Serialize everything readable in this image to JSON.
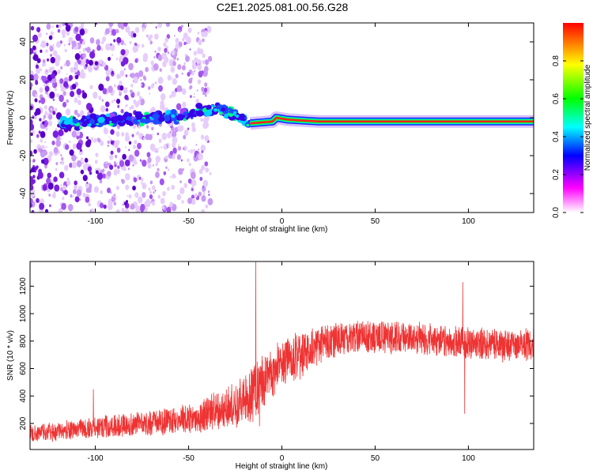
{
  "title": "C2E1.2025.081.00.56.G28",
  "chart_data": [
    {
      "type": "heatmap",
      "name": "spectrogram",
      "xlabel": "Height of straight line (km)",
      "ylabel": "Frequency (Hz)",
      "xlim": [
        -135,
        135
      ],
      "ylim": [
        -50,
        50
      ],
      "x_ticks": [
        -100,
        -50,
        0,
        50,
        100
      ],
      "y_ticks": [
        -40,
        -20,
        0,
        20,
        40
      ],
      "grid": false,
      "colorbar": {
        "label": "Normalized spectral amplitude",
        "range": [
          0,
          1
        ],
        "ticks": [
          0.0,
          0.2,
          0.4,
          0.6,
          0.8
        ],
        "tick_labels": [
          "0.0",
          "0.2",
          "0.4",
          "0.6",
          "0.8"
        ],
        "colors": [
          "#ffffff",
          "#ff00ff",
          "#0000ff",
          "#00ffff",
          "#00ff00",
          "#ffff00",
          "#ff0000"
        ]
      },
      "signal_track": [
        {
          "x": -118,
          "y": -3
        },
        {
          "x": -100,
          "y": -2
        },
        {
          "x": -85,
          "y": -1
        },
        {
          "x": -70,
          "y": 0
        },
        {
          "x": -55,
          "y": 1
        },
        {
          "x": -45,
          "y": 3
        },
        {
          "x": -35,
          "y": 5
        },
        {
          "x": -25,
          "y": 2
        },
        {
          "x": -17,
          "y": -3
        },
        {
          "x": -5,
          "y": -2
        },
        {
          "x": -3,
          "y": 0
        },
        {
          "x": 3,
          "y": -1
        },
        {
          "x": 20,
          "y": -2
        },
        {
          "x": 60,
          "y": -2
        },
        {
          "x": 95,
          "y": -2
        },
        {
          "x": 135,
          "y": -2
        }
      ],
      "noise_extent_x": [
        -135,
        -38
      ]
    },
    {
      "type": "line",
      "name": "snr",
      "xlabel": "Height of straight line (km)",
      "ylabel": "SNR (10 * v/v)",
      "xlim": [
        -135,
        135
      ],
      "ylim": [
        10,
        1380
      ],
      "x_ticks": [
        -100,
        -50,
        0,
        50,
        100
      ],
      "y_ticks": [
        200,
        400,
        600,
        800,
        1000,
        1200
      ],
      "grid": false,
      "series_color": "#ee3333",
      "trend": [
        {
          "x": -135,
          "y": 130
        },
        {
          "x": -120,
          "y": 140
        },
        {
          "x": -100,
          "y": 170
        },
        {
          "x": -80,
          "y": 190
        },
        {
          "x": -60,
          "y": 220
        },
        {
          "x": -45,
          "y": 250
        },
        {
          "x": -35,
          "y": 290
        },
        {
          "x": -25,
          "y": 330
        },
        {
          "x": -18,
          "y": 390
        },
        {
          "x": -12,
          "y": 480
        },
        {
          "x": -5,
          "y": 580
        },
        {
          "x": 0,
          "y": 640
        },
        {
          "x": 10,
          "y": 700
        },
        {
          "x": 20,
          "y": 770
        },
        {
          "x": 30,
          "y": 810
        },
        {
          "x": 40,
          "y": 840
        },
        {
          "x": 50,
          "y": 830
        },
        {
          "x": 60,
          "y": 830
        },
        {
          "x": 70,
          "y": 820
        },
        {
          "x": 80,
          "y": 810
        },
        {
          "x": 90,
          "y": 800
        },
        {
          "x": 100,
          "y": 780
        },
        {
          "x": 110,
          "y": 780
        },
        {
          "x": 120,
          "y": 770
        },
        {
          "x": 135,
          "y": 780
        }
      ],
      "spread": [
        {
          "x": -135,
          "y": 60
        },
        {
          "x": -60,
          "y": 90
        },
        {
          "x": -30,
          "y": 140
        },
        {
          "x": -15,
          "y": 200
        },
        {
          "x": 0,
          "y": 170
        },
        {
          "x": 30,
          "y": 110
        },
        {
          "x": 135,
          "y": 110
        }
      ],
      "spikes": [
        {
          "x": -101,
          "y": 450
        },
        {
          "x": -14,
          "y": 1380
        },
        {
          "x": -12,
          "y": 180
        },
        {
          "x": 97,
          "y": 1230
        },
        {
          "x": 98,
          "y": 270
        }
      ]
    }
  ]
}
